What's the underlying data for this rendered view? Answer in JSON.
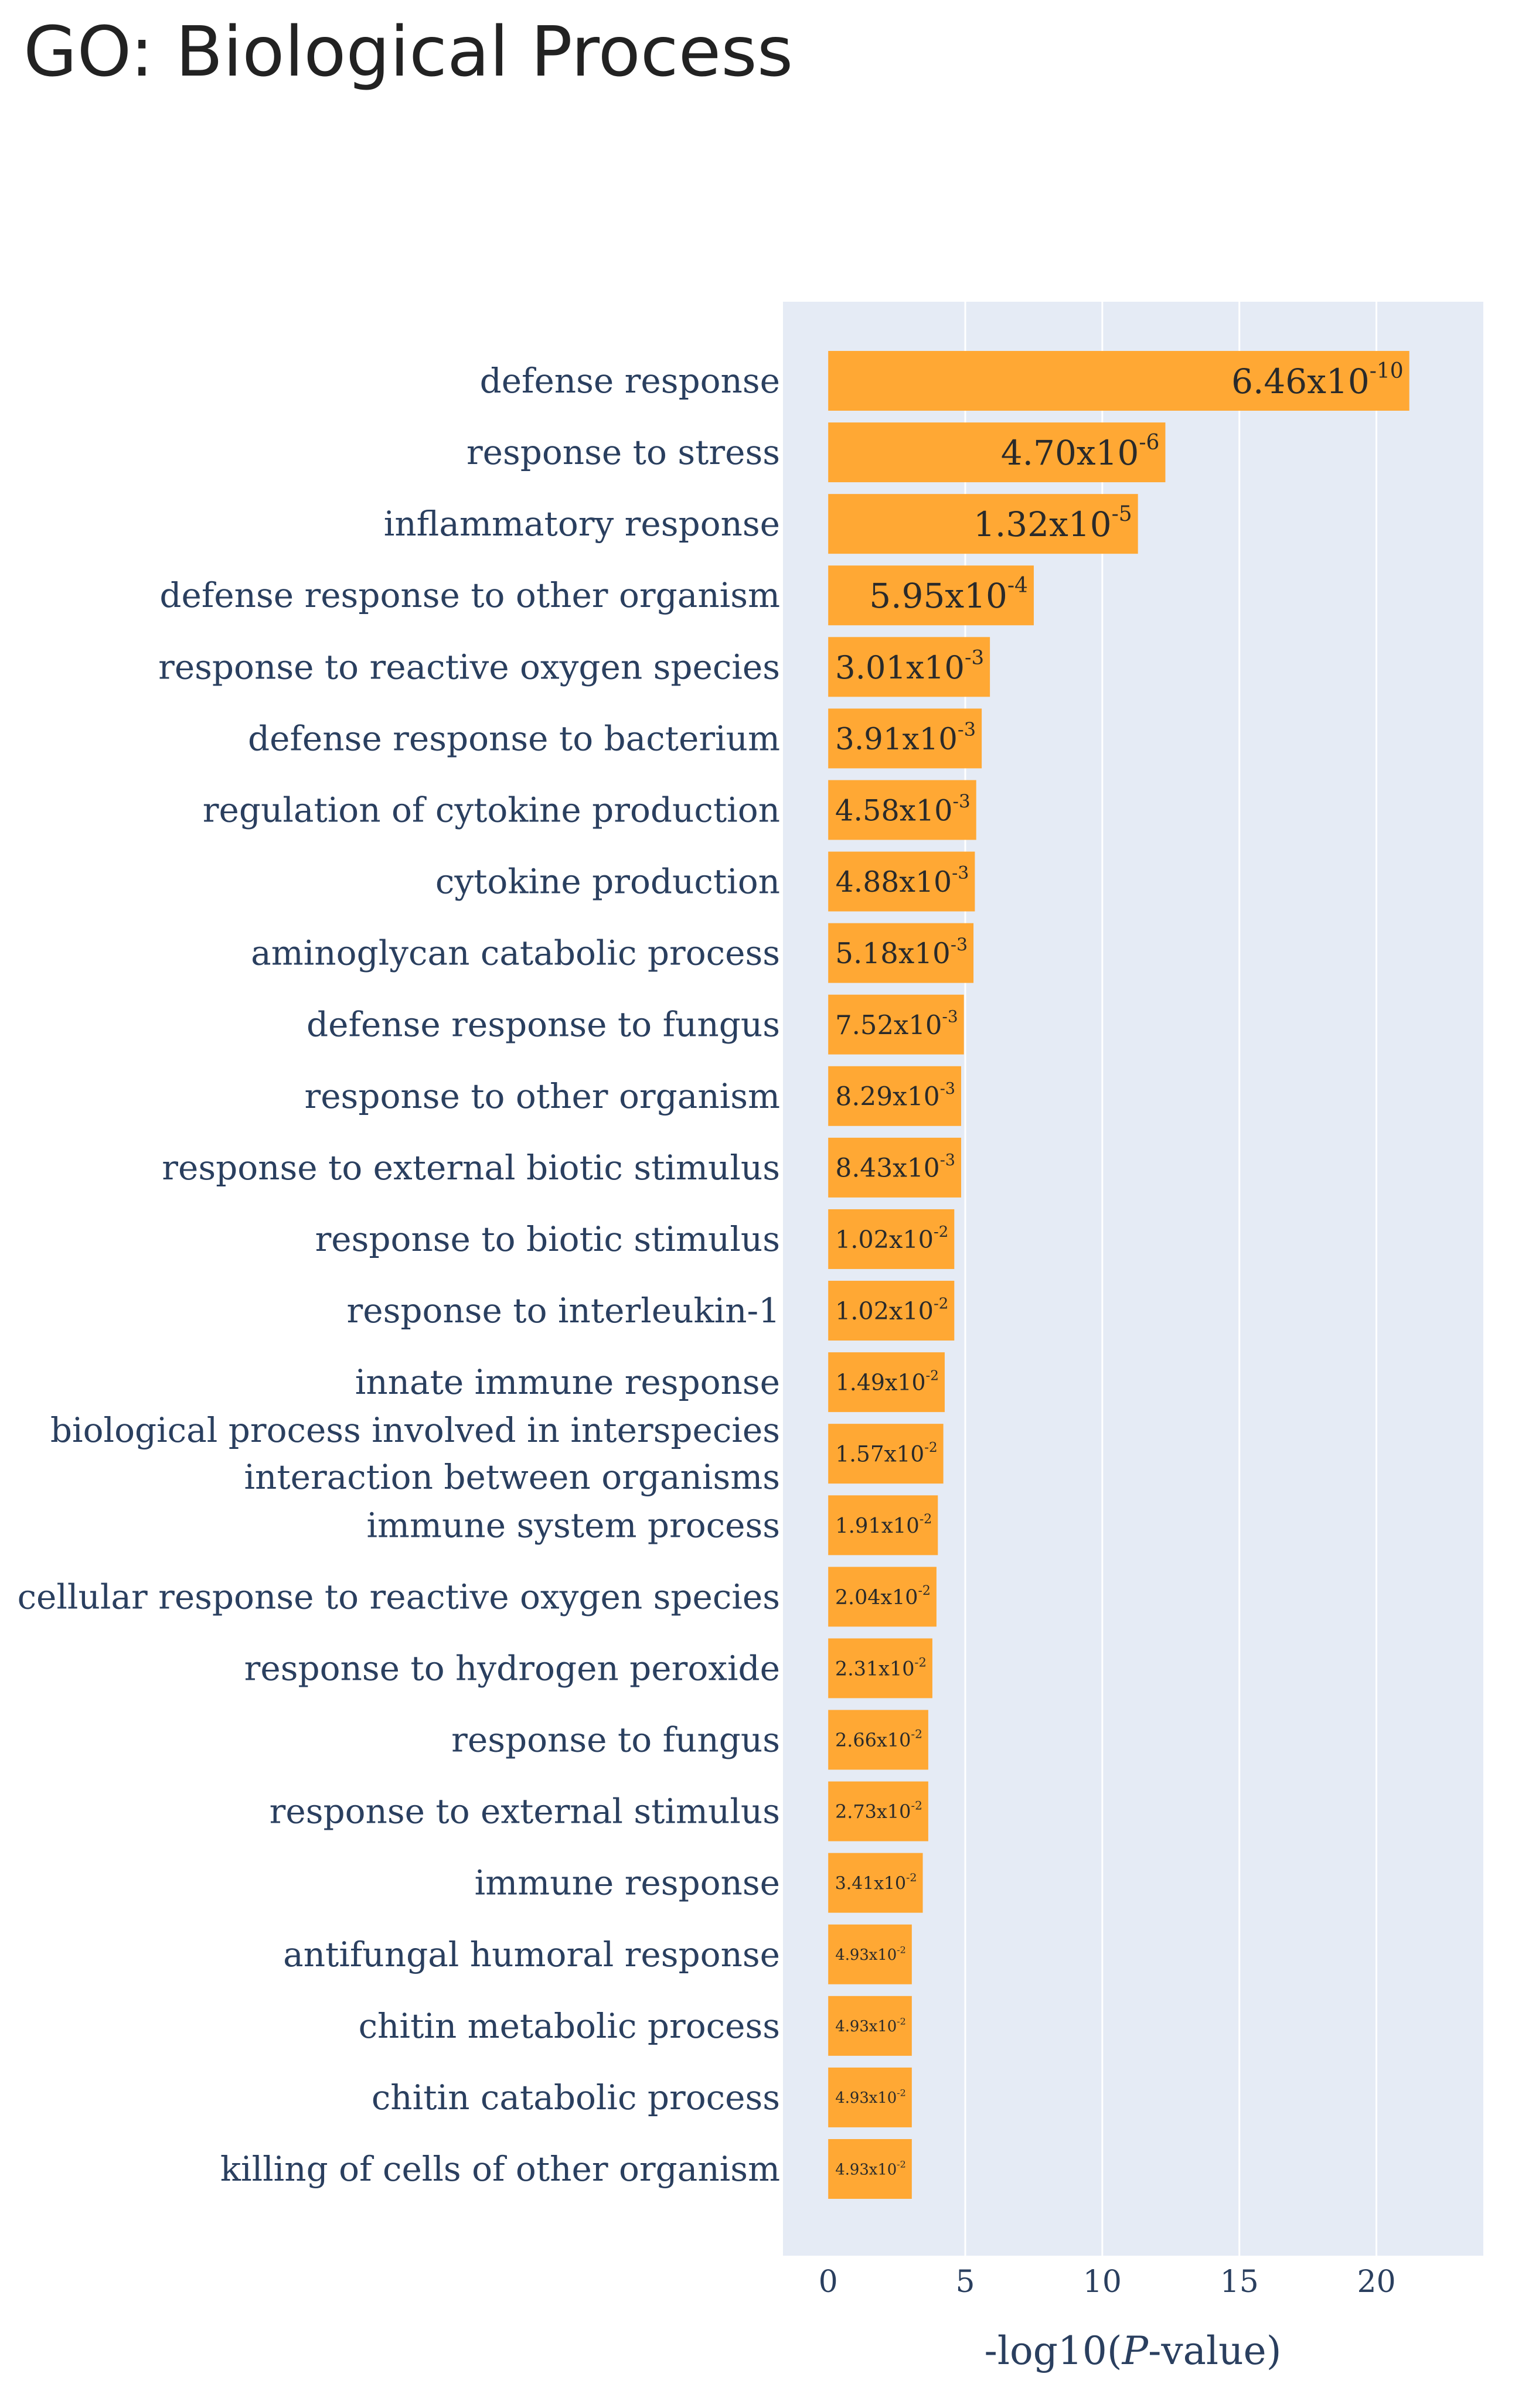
{
  "page_title": "GO: Biological Process",
  "chart_data": {
    "type": "bar",
    "orientation": "horizontal",
    "title": "GO: Biological Process",
    "xlabel": "-log10(P-value)",
    "xlabel_parts": {
      "prefix": "-log10(",
      "italic": "P",
      "suffix": "-value)"
    },
    "ylabel": "",
    "xlim": [
      -1.65,
      23.9
    ],
    "xticks": [
      0,
      5,
      10,
      15,
      20
    ],
    "grid": true,
    "bar_color": "#ffa834",
    "plot_bg": "#e5ebf5",
    "categories": [
      [
        "defense response"
      ],
      [
        "response to stress"
      ],
      [
        "inflammatory response"
      ],
      [
        "defense response to other organism"
      ],
      [
        "response to reactive oxygen species"
      ],
      [
        "defense response to bacterium"
      ],
      [
        "regulation of cytokine production"
      ],
      [
        "cytokine production"
      ],
      [
        "aminoglycan catabolic process"
      ],
      [
        "defense response to fungus"
      ],
      [
        "response to other organism"
      ],
      [
        "response to external biotic stimulus"
      ],
      [
        "response to biotic stimulus"
      ],
      [
        "response to interleukin-1"
      ],
      [
        "innate immune response"
      ],
      [
        "biological process involved in interspecies",
        "interaction between organisms"
      ],
      [
        "immune system process"
      ],
      [
        "cellular response to reactive oxygen species"
      ],
      [
        "response to hydrogen peroxide"
      ],
      [
        "response to fungus"
      ],
      [
        "response to external stimulus"
      ],
      [
        "immune response"
      ],
      [
        "antifungal humoral response"
      ],
      [
        "chitin metabolic process"
      ],
      [
        "chitin catabolic process"
      ],
      [
        "killing of cells of other organism"
      ]
    ],
    "values": [
      21.2,
      12.3,
      11.3,
      7.5,
      5.9,
      5.6,
      5.4,
      5.35,
      5.3,
      4.95,
      4.85,
      4.85,
      4.6,
      4.6,
      4.25,
      4.2,
      4.0,
      3.95,
      3.8,
      3.65,
      3.65,
      3.45,
      3.05,
      3.05,
      3.05,
      3.05
    ],
    "data_labels": [
      {
        "m": "6.46",
        "e": "-10"
      },
      {
        "m": "4.70",
        "e": "-6"
      },
      {
        "m": "1.32",
        "e": "-5"
      },
      {
        "m": "5.95",
        "e": "-4"
      },
      {
        "m": "3.01",
        "e": "-3"
      },
      {
        "m": "3.91",
        "e": "-3"
      },
      {
        "m": "4.58",
        "e": "-3"
      },
      {
        "m": "4.88",
        "e": "-3"
      },
      {
        "m": "5.18",
        "e": "-3"
      },
      {
        "m": "7.52",
        "e": "-3"
      },
      {
        "m": "8.29",
        "e": "-3"
      },
      {
        "m": "8.43",
        "e": "-3"
      },
      {
        "m": "1.02",
        "e": "-2"
      },
      {
        "m": "1.02",
        "e": "-2"
      },
      {
        "m": "1.49",
        "e": "-2"
      },
      {
        "m": "1.57",
        "e": "-2"
      },
      {
        "m": "1.91",
        "e": "-2"
      },
      {
        "m": "2.04",
        "e": "-2"
      },
      {
        "m": "2.31",
        "e": "-2"
      },
      {
        "m": "2.66",
        "e": "-2"
      },
      {
        "m": "2.73",
        "e": "-2"
      },
      {
        "m": "3.41",
        "e": "-2"
      },
      {
        "m": "4.93",
        "e": "-2"
      },
      {
        "m": "4.93",
        "e": "-2"
      },
      {
        "m": "4.93",
        "e": "-2"
      },
      {
        "m": "4.93",
        "e": "-2"
      }
    ],
    "label_sep": "x10"
  }
}
